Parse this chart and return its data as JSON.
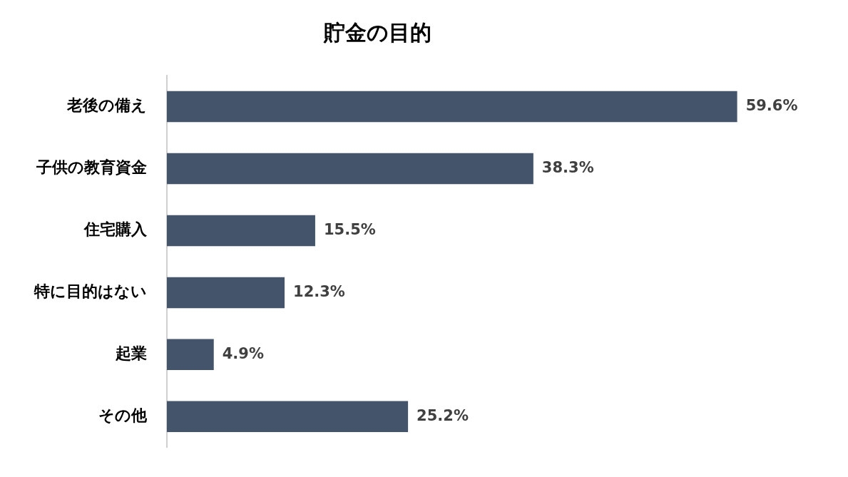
{
  "chart_data": {
    "type": "bar",
    "orientation": "horizontal",
    "title": "貯金の目的",
    "categories": [
      "老後の備え",
      "子供の教育資金",
      "住宅購入",
      "特に目的はない",
      "起業",
      "その他"
    ],
    "values": [
      59.6,
      38.3,
      15.5,
      12.3,
      4.9,
      25.2
    ],
    "value_labels": [
      "59.6%",
      "38.3%",
      "15.5%",
      "12.3%",
      "4.9%",
      "25.2%"
    ],
    "color": "#44546a",
    "grid": false,
    "legend": false,
    "tick_labels": "y"
  }
}
